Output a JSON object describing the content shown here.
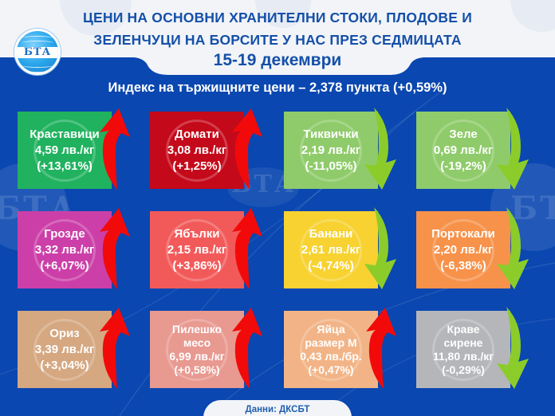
{
  "header": {
    "title_line_1": "ЦЕНИ НА ОСНОВНИ ХРАНИТЕЛНИ СТОКИ, ПЛОДОВЕ И",
    "title_line_2": "ЗЕЛЕНЧУЦИ НА БОРСИТЕ У НАС ПРЕЗ СЕДМИЦАТА",
    "date_range": "15-19 декември",
    "logo_text": "БТА"
  },
  "index": {
    "text": "Индекс на тържищните цени – 2,378 пункта (+0,59%)",
    "value": "2,378",
    "unit": "пункта",
    "change": "+0,59%"
  },
  "colors": {
    "background": "#0a47b0",
    "header_bg": "#f2f4f8",
    "title_text": "#1550a8",
    "arrow_up": "#f20a0a",
    "arrow_down": "#8ccc2a"
  },
  "products": [
    {
      "name_lines": [
        "Краставици"
      ],
      "price": "4,59 лв./кг",
      "change": "(+13,61%)",
      "direction": "up",
      "color": "#21b25f",
      "icon": "cucumber-slice-icon"
    },
    {
      "name_lines": [
        "Домати"
      ],
      "price": "3,08 лв./кг",
      "change": "(+1,25%)",
      "direction": "up",
      "color": "#c4091a",
      "icon": "tomato-icon"
    },
    {
      "name_lines": [
        "Тиквички"
      ],
      "price": "2,19 лв./кг",
      "change": "(-11,05%)",
      "direction": "down",
      "color": "#8fcb6a",
      "icon": "zucchini-icon"
    },
    {
      "name_lines": [
        "Зеле"
      ],
      "price": "0,69 лв./кг",
      "change": "(-19,2%)",
      "direction": "down",
      "color": "#8fcb6a",
      "icon": "cabbage-icon"
    },
    {
      "name_lines": [
        "Грозде"
      ],
      "price": "3,32 лв./кг",
      "change": "(+6,07%)",
      "direction": "up",
      "color": "#cc3fa8",
      "icon": "grapes-icon"
    },
    {
      "name_lines": [
        "Ябълки"
      ],
      "price": "2,15 лв./кг",
      "change": "(+3,86%)",
      "direction": "up",
      "color": "#f25a5a",
      "icon": "apple-icon"
    },
    {
      "name_lines": [
        "Банани"
      ],
      "price": "2,61 лв./кг",
      "change": "(-4,74%)",
      "direction": "down",
      "color": "#f7d231",
      "icon": "banana-icon"
    },
    {
      "name_lines": [
        "Портокали"
      ],
      "price": "2,20 лв./кг",
      "change": "(-6,38%)",
      "direction": "down",
      "color": "#f7924a",
      "icon": "orange-icon"
    },
    {
      "name_lines": [
        "Ориз"
      ],
      "price": "3,39 лв./кг",
      "change": "(+3,04%)",
      "direction": "up",
      "color": "#d5a882",
      "icon": "rice-icon"
    },
    {
      "name_lines": [
        "Пилешко",
        "месо"
      ],
      "price": "6,99 лв./кг",
      "change": "(+0,58%)",
      "direction": "up",
      "color": "#e89990",
      "icon": "chicken-icon"
    },
    {
      "name_lines": [
        "Яйца",
        "размер М"
      ],
      "price": "0,43 лв./бр.",
      "change": "(+0,47%)",
      "direction": "up",
      "color": "#f2b486",
      "icon": "egg-icon"
    },
    {
      "name_lines": [
        "Краве",
        "сирене"
      ],
      "price": "11,80 лв./кг",
      "change": "(-0,29%)",
      "direction": "down",
      "color": "#b4b6ba",
      "icon": "cheese-icon"
    }
  ],
  "footer": {
    "source": "Данни: ДКСБТ"
  }
}
